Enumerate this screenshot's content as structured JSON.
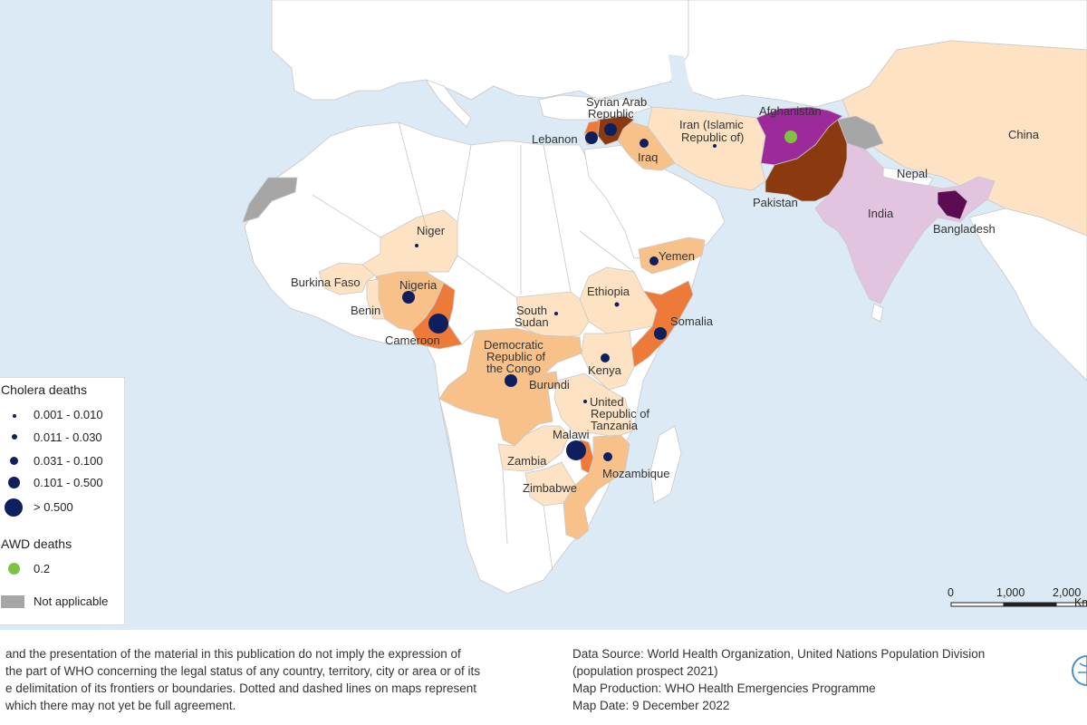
{
  "map": {
    "countries": [
      "Syrian Arab Republic",
      "Lebanon",
      "Iraq",
      "Iran (Islamic Republic of)",
      "Afghanistan",
      "Pakistan",
      "India",
      "Nepal",
      "Bangladesh",
      "China",
      "Yemen",
      "Niger",
      "Nigeria",
      "Burkina Faso",
      "Benin",
      "Cameroon",
      "Ethiopia",
      "South Sudan",
      "Somalia",
      "Democratic Republic of the Congo",
      "Kenya",
      "Burundi",
      "United Republic of Tanzania",
      "Malawi",
      "Zambia",
      "Mozambique",
      "Zimbabwe"
    ],
    "label_lines": {
      "syria": [
        "Syrian Arab",
        "Republic"
      ],
      "lebanon": "Lebanon",
      "iraq": "Iraq",
      "iran": [
        "Iran (Islamic",
        "Republic of)"
      ],
      "afghanistan": "Afghanistan",
      "pakistan": "Pakistan",
      "india": "India",
      "nepal": "Nepal",
      "bangladesh": "Bangladesh",
      "china": "China",
      "yemen": "Yemen",
      "niger": "Niger",
      "nigeria": "Nigeria",
      "burkina": "Burkina Faso",
      "benin": "Benin",
      "cameroon": "Cameroon",
      "ethiopia": "Ethiopia",
      "south_sudan": [
        "South",
        "Sudan"
      ],
      "somalia": "Somalia",
      "drc": [
        "Democratic",
        "Republic of",
        "the Congo"
      ],
      "kenya": "Kenya",
      "burundi": "Burundi",
      "tanzania": [
        "United",
        "Republic of",
        "Tanzania"
      ],
      "malawi": "Malawi",
      "zambia": "Zambia",
      "mozambique": "Mozambique",
      "zimbabwe": "Zimbabwe"
    },
    "colors": {
      "ocean": "#dceaf5",
      "land": "#ffffff",
      "lightest": "#fde3c4",
      "light": "#f9c18a",
      "medium": "#ee7a3a",
      "dark": "#8b3a0f",
      "darkest": "#5a1f08",
      "india_fill": "#e3c4e0",
      "afghanistan_fill": "#9c2a9a",
      "bangladesh_fill": "#5c0c52",
      "not_applicable": "#a6a6a6",
      "cholera_dot": "#0d1f5c",
      "awd_dot": "#7fc241"
    }
  },
  "legend": {
    "cholera_title": "Cholera deaths",
    "cholera_classes": [
      "0.001 - 0.010",
      "0.011 - 0.030",
      "0.031 - 0.100",
      "0.101 - 0.500",
      "> 0.500"
    ],
    "awd_title": "AWD deaths",
    "awd_value": "0.2",
    "not_applicable": "Not applicable"
  },
  "scale_bar": {
    "ticks": [
      "0",
      "1,000",
      "2,000"
    ],
    "unit": "Km"
  },
  "footer": {
    "disclaimer_lines": [
      "and the presentation of the material in this publication do not imply the expression of",
      "the part of WHO concerning the legal status of any country, territory, city or area or of its",
      "e delimitation of its frontiers or boundaries. Dotted and dashed lines on maps represent",
      "which there may not yet be full agreement."
    ],
    "source_lines": [
      "Data Source: World Health Organization, United Nations Population Division",
      "(population prospect 2021)",
      "Map Production: WHO Health Emergencies Programme",
      "Map Date: 9 December 2022"
    ]
  }
}
